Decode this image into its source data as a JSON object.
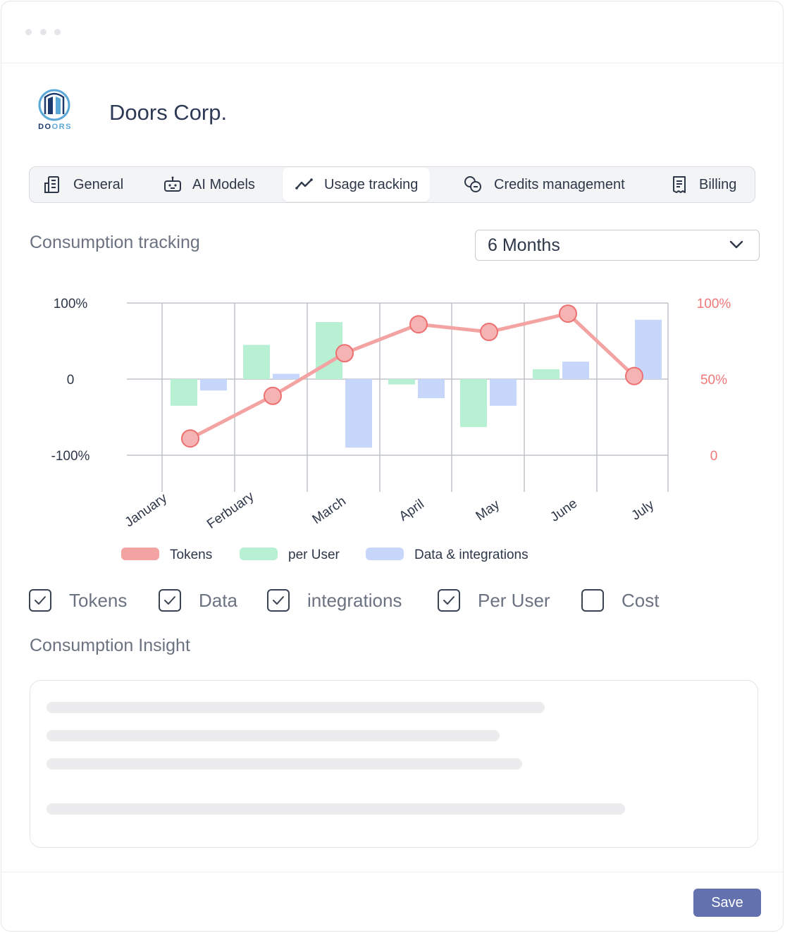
{
  "company": {
    "name": "Doors Corp.",
    "logo_text_prefix": "DO",
    "logo_text_suffix": "ORS"
  },
  "tabs": [
    {
      "label": "General",
      "icon": "building-icon"
    },
    {
      "label": "AI Models",
      "icon": "robot-icon"
    },
    {
      "label": "Usage tracking",
      "icon": "trend-line-icon",
      "active": true
    },
    {
      "label": "Credits management",
      "icon": "coins-icon"
    },
    {
      "label": "Billing",
      "icon": "receipt-icon"
    }
  ],
  "consumption": {
    "title": "Consumption tracking",
    "period_select": {
      "value": "6 Months"
    }
  },
  "chart_data": {
    "type": "bar",
    "categories": [
      "January",
      "Ferbuary",
      "March",
      "April",
      "May",
      "June",
      "July"
    ],
    "left_axis": {
      "ticks": [
        "100%",
        "0",
        "-100%"
      ],
      "ylim": [
        -100,
        100
      ]
    },
    "right_axis": {
      "ticks": [
        "100%",
        "50%",
        "0"
      ],
      "ylim": [
        0,
        100
      ]
    },
    "series": [
      {
        "name": "Tokens",
        "type": "line",
        "axis": "right",
        "color": "#f4a3a3",
        "values": [
          11,
          39,
          67,
          86,
          81,
          93,
          52
        ]
      },
      {
        "name": "per User",
        "type": "bar",
        "axis": "left",
        "color": "#b7f0d3",
        "values": [
          -35,
          45,
          75,
          -7,
          -63,
          13,
          null
        ]
      },
      {
        "name": "Data & integrations",
        "type": "bar",
        "axis": "left",
        "color": "#c7d7fb",
        "values": [
          -15,
          7,
          -90,
          -25,
          -35,
          23,
          78
        ]
      }
    ],
    "grid": true,
    "legend": "bottom"
  },
  "filters": [
    {
      "label": "Tokens",
      "checked": true
    },
    {
      "label": "Data",
      "checked": true
    },
    {
      "label": "integrations",
      "checked": true
    },
    {
      "label": "Per User",
      "checked": true
    },
    {
      "label": "Cost",
      "checked": false
    }
  ],
  "insight": {
    "title": "Consumption Insight"
  },
  "footer": {
    "save_label": "Save"
  }
}
